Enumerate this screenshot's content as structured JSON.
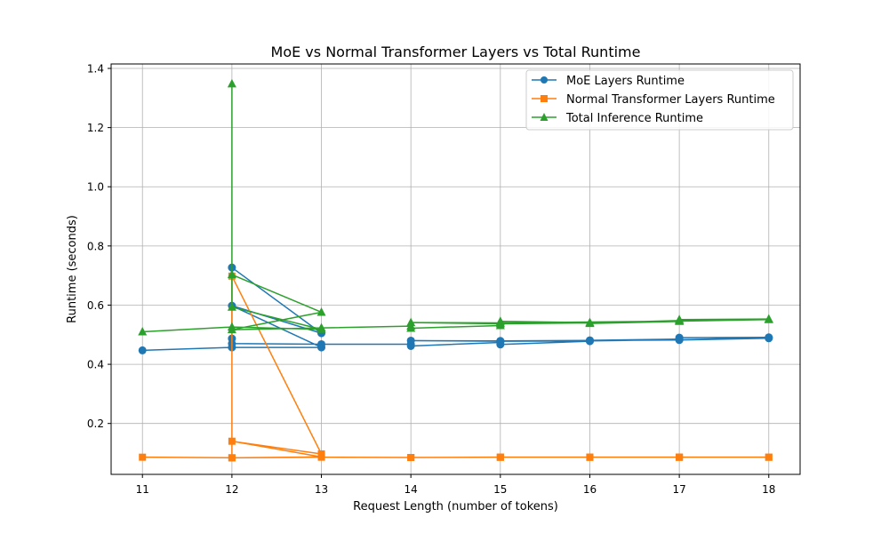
{
  "chart_data": {
    "type": "line",
    "title": "MoE vs Normal Transformer Layers vs Total Runtime",
    "xlabel": "Request Length (number of tokens)",
    "ylabel": "Runtime (seconds)",
    "xlim": [
      10.65,
      18.35
    ],
    "ylim": [
      0.028,
      1.415
    ],
    "xticks": [
      11,
      12,
      13,
      14,
      15,
      16,
      17,
      18
    ],
    "yticks": [
      0.2,
      0.4,
      0.6,
      0.8,
      1.0,
      1.2,
      1.4
    ],
    "grid": true,
    "legend_position": "top-right",
    "series": [
      {
        "name": "MoE Layers Runtime",
        "color": "#1f77b4",
        "marker": "circle",
        "points": [
          [
            11,
            0.447
          ],
          [
            12,
            0.457
          ],
          [
            13,
            0.457
          ],
          [
            12,
            0.598
          ],
          [
            13,
            0.505
          ],
          [
            12,
            0.727
          ],
          [
            12,
            0.487
          ],
          [
            12,
            0.47
          ],
          [
            13,
            0.468
          ],
          [
            14,
            0.468
          ],
          [
            14,
            0.462
          ],
          [
            15,
            0.474
          ],
          [
            15,
            0.467
          ],
          [
            16,
            0.478
          ],
          [
            16,
            0.481
          ],
          [
            17,
            0.485
          ],
          [
            17,
            0.49
          ],
          [
            18,
            0.491
          ],
          [
            18,
            0.488
          ],
          [
            17,
            0.482
          ],
          [
            15,
            0.479
          ],
          [
            14,
            0.48
          ],
          [
            15,
            0.478
          ],
          [
            16,
            0.479
          ],
          [
            17,
            0.483
          ],
          [
            18,
            0.49
          ]
        ]
      },
      {
        "name": "Normal Transformer Layers Runtime",
        "color": "#ff7f0e",
        "marker": "square",
        "points": [
          [
            11,
            0.086
          ],
          [
            12,
            0.084
          ],
          [
            13,
            0.087
          ],
          [
            12,
            0.14
          ],
          [
            13,
            0.097
          ],
          [
            12,
            0.698
          ],
          [
            12,
            0.084
          ],
          [
            13,
            0.086
          ],
          [
            14,
            0.085
          ],
          [
            15,
            0.086
          ],
          [
            16,
            0.086
          ],
          [
            17,
            0.086
          ],
          [
            18,
            0.086
          ],
          [
            17,
            0.086
          ],
          [
            16,
            0.086
          ],
          [
            15,
            0.086
          ],
          [
            14,
            0.085
          ],
          [
            15,
            0.086
          ],
          [
            16,
            0.086
          ],
          [
            17,
            0.086
          ],
          [
            18,
            0.086
          ]
        ]
      },
      {
        "name": "Total Inference Runtime",
        "color": "#2ca02c",
        "marker": "triangle",
        "points": [
          [
            11,
            0.51
          ],
          [
            12,
            0.526
          ],
          [
            13,
            0.518
          ],
          [
            12,
            0.593
          ],
          [
            12,
            1.348
          ],
          [
            12,
            0.703
          ],
          [
            13,
            0.576
          ],
          [
            12,
            0.517
          ],
          [
            13,
            0.523
          ],
          [
            14,
            0.529
          ],
          [
            14,
            0.522
          ],
          [
            15,
            0.531
          ],
          [
            15,
            0.545
          ],
          [
            16,
            0.541
          ],
          [
            16,
            0.538
          ],
          [
            17,
            0.545
          ],
          [
            17,
            0.551
          ],
          [
            18,
            0.553
          ],
          [
            18,
            0.551
          ],
          [
            17,
            0.546
          ],
          [
            15,
            0.54
          ],
          [
            14,
            0.541
          ],
          [
            15,
            0.537
          ],
          [
            16,
            0.54
          ],
          [
            17,
            0.548
          ],
          [
            18,
            0.552
          ]
        ]
      }
    ]
  }
}
